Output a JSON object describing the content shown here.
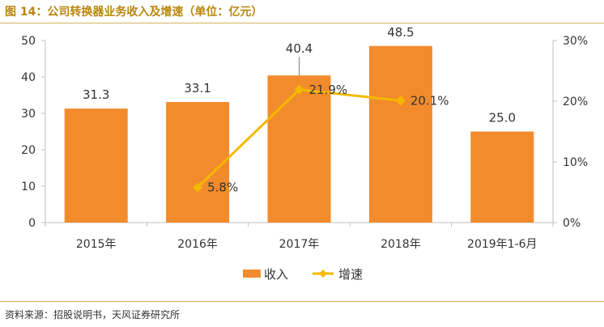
{
  "figure_title": "图 14：公司转换器业务收入及增速（单位：亿元）",
  "source_note": "资料来源：招股说明书，天风证券研究所",
  "colors": {
    "bar": "#F28B2C",
    "line": "#F5B800",
    "title": "#B8860B",
    "rule": "#D4B25A",
    "axis": "#BFBFBF",
    "text": "#333333"
  },
  "chart_data": {
    "type": "bar",
    "categories": [
      "2015年",
      "2016年",
      "2017年",
      "2018年",
      "2019年1-6月"
    ],
    "series": [
      {
        "name": "收入",
        "type": "bar",
        "axis": "left",
        "values": [
          31.3,
          33.1,
          40.4,
          48.5,
          25.0
        ],
        "labels": [
          "31.3",
          "33.1",
          "40.4",
          "48.5",
          "25.0"
        ]
      },
      {
        "name": "增速",
        "type": "line",
        "axis": "right",
        "values": [
          null,
          5.8,
          21.9,
          20.1,
          null
        ],
        "labels": [
          "",
          "5.8%",
          "21.9%",
          "20.1%",
          ""
        ]
      }
    ],
    "y_left": {
      "min": 0,
      "max": 50,
      "ticks": [
        "0",
        "10",
        "20",
        "30",
        "40",
        "50"
      ]
    },
    "y_right": {
      "min": 0,
      "max": 30,
      "ticks": [
        "0%",
        "10%",
        "20%",
        "30%"
      ]
    },
    "legend": {
      "position": "bottom"
    },
    "grid": false
  }
}
